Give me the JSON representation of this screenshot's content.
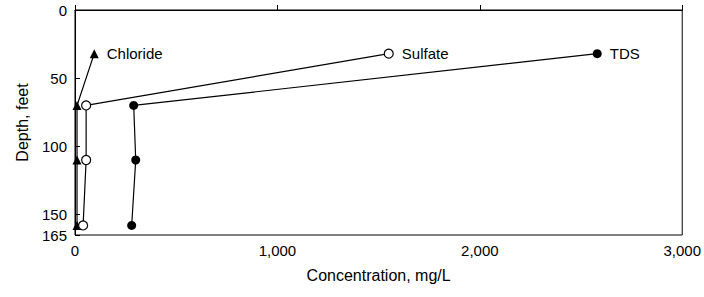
{
  "chart_data": {
    "type": "line",
    "x_label": "Concentration, mg/L",
    "y_label": "Depth, feet",
    "xlim": [
      0,
      3000
    ],
    "xticks": [
      0,
      1000,
      2000,
      3000
    ],
    "ylim": [
      0,
      165
    ],
    "yticks": [
      0,
      50,
      100,
      150
    ],
    "grid": false,
    "series": [
      {
        "name": "Chloride",
        "color": "#000000",
        "marker": "triangle",
        "x": [
          95,
          10,
          10,
          10
        ],
        "values": [
          32,
          70,
          110,
          158
        ]
      },
      {
        "name": "Sulfate",
        "color": "#000000",
        "marker": "circle_open",
        "x": [
          1550,
          55,
          55,
          40
        ],
        "values": [
          32,
          70,
          110,
          158
        ]
      },
      {
        "name": "TDS",
        "color": "#000000",
        "marker": "circle",
        "x": [
          2580,
          290,
          300,
          280
        ],
        "values": [
          32,
          70,
          110,
          158
        ]
      }
    ]
  }
}
